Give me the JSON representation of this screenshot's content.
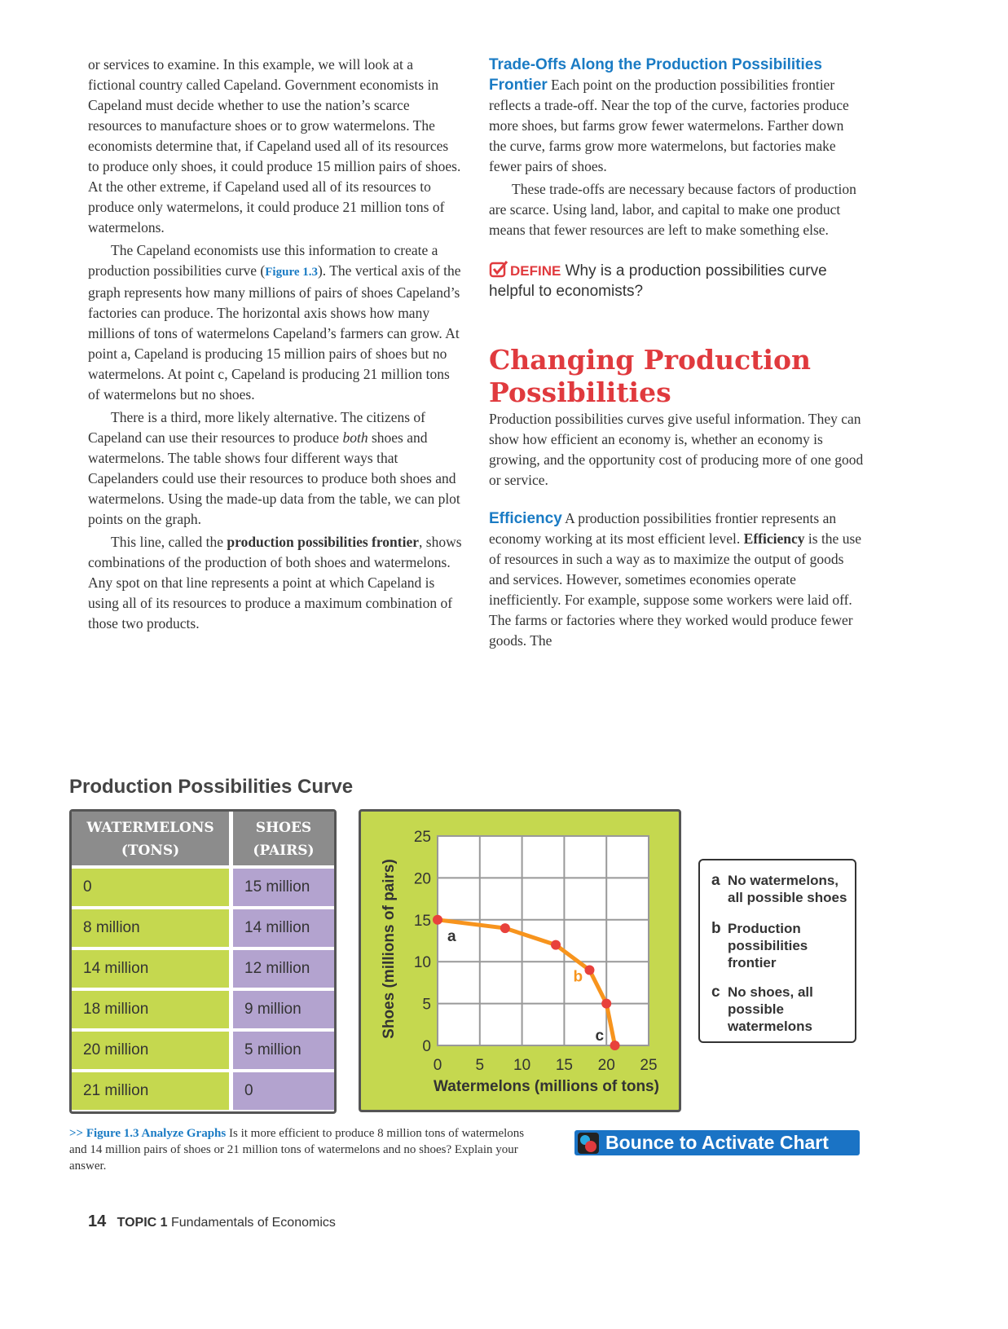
{
  "left_column": {
    "paragraphs": [
      [
        "or services to examine. In this example, we will look at a fictional country called Capeland. Government economists in Capeland must decide whether to use the nation’s scarce resources to manufacture shoes or to grow watermelons. The economists determine that, if Capeland used all of its resources to produce only shoes, it could produce 15 million pairs of shoes. At the other extreme, if Capeland used all of its resources to produce only watermelons, it could produce 21 million tons of watermelons."
      ],
      [
        "The Capeland economists use this information to create a production possibilities curve (",
        "Figure 1.3",
        "). The vertical axis of the graph represents how many millions of pairs of shoes Capeland’s factories can produce. The horizontal axis shows how many millions of tons of watermelons Capeland’s farmers can grow. At point a, Capeland is producing 15 million pairs of shoes but no watermelons. At point c, Capeland is producing 21 million tons of watermelons but no shoes."
      ],
      [
        "There is a third, more likely alternative. The citizens of Capeland can use their resources to produce ",
        "both",
        " shoes and watermelons. The table shows four different ways that Capelanders could use their resources to produce both shoes and watermelons. Using the made-up data from the table, we can plot points on the graph."
      ],
      [
        "This line, called the ",
        "production possibilities frontier",
        ", shows combinations of the production of both shoes and watermelons. Any spot on that line represents a point at which Capeland is using all of its resources to produce a maximum combination of those two products."
      ]
    ]
  },
  "right_column": {
    "trade_offs": [
      "Trade-Offs Along the Production Possibilities Frontier",
      " Each point on the production possibilities frontier reflects a trade-off. Near the top of the curve, factories produce more shoes, but farms grow fewer watermelons. Farther down the curve, farms grow more watermelons, but factories make fewer pairs of shoes."
    ],
    "trade_offs_2": "These trade-offs are necessary because factors of production are scarce. Using land, labor, and capital to make one product means that fewer resources are left to make something else.",
    "define": [
      "DEFINE",
      " Why is a production possibilities curve helpful to economists?"
    ],
    "heading": "Changing Production Possibilities",
    "intro": "Production possibilities curves give useful information. They can show how efficient an economy is, whether an economy is growing, and the opportunity cost of producing more of one good or service.",
    "efficiency": [
      "Efficiency",
      " A production possibilities frontier represents an economy working at its most efficient level. ",
      "Efficiency",
      " is the use of resources in such a way as to maximize the output of goods and services. However, sometimes economies operate inefficiently. For example, suppose some workers were laid off. The farms or factories where they worked would produce fewer goods. The"
    ]
  },
  "figure": {
    "title": "Production Possibilities Curve",
    "table": {
      "header": [
        "WATERMELONS (TONS)",
        "SHOES (PAIRS)"
      ],
      "rows": [
        [
          "0",
          "15 million"
        ],
        [
          "8 million",
          "14 million"
        ],
        [
          "14 million",
          "12 million"
        ],
        [
          "18 million",
          "9 million"
        ],
        [
          "20 million",
          "5 million"
        ],
        [
          "21 million",
          "0"
        ]
      ]
    },
    "legend": [
      {
        "letter": "a",
        "text": "No watermelons, all possible shoes"
      },
      {
        "letter": "b",
        "text": "Production possibilities frontier"
      },
      {
        "letter": "c",
        "text": "No shoes, all possible watermelons"
      }
    ],
    "caption": [
      ">> Figure 1.3 Analyze Graphs",
      " Is it more efficient to produce 8 million tons of watermelons and 14 million pairs of shoes or 21 million tons of watermelons and no shoes? Explain your answer."
    ],
    "button": "Bounce to Activate Chart"
  },
  "chart_data": {
    "type": "line",
    "x_label": "Watermelons (millions of tons)",
    "y_label": "Shoes (millions of pairs)",
    "x": [
      0,
      8,
      14,
      18,
      20,
      21
    ],
    "series": [
      {
        "color": "#f7941d",
        "marker_color": "#e8413c",
        "values": [
          15,
          14,
          12,
          9,
          5,
          0
        ]
      }
    ],
    "xlim": [
      0,
      25
    ],
    "ylim": [
      0,
      25
    ],
    "xticks": [
      0,
      5,
      10,
      15,
      20,
      25
    ],
    "yticks": [
      0,
      5,
      10,
      15,
      20,
      25
    ],
    "grid": true,
    "point_labels": [
      {
        "text": "a",
        "color": "#333333"
      },
      {
        "text": "b",
        "color": "#f7941d"
      },
      {
        "text": "c",
        "color": "#333333"
      }
    ]
  },
  "footer": {
    "page": "14",
    "topic": "TOPIC 1",
    "title": "Fundamentals of Economics"
  }
}
